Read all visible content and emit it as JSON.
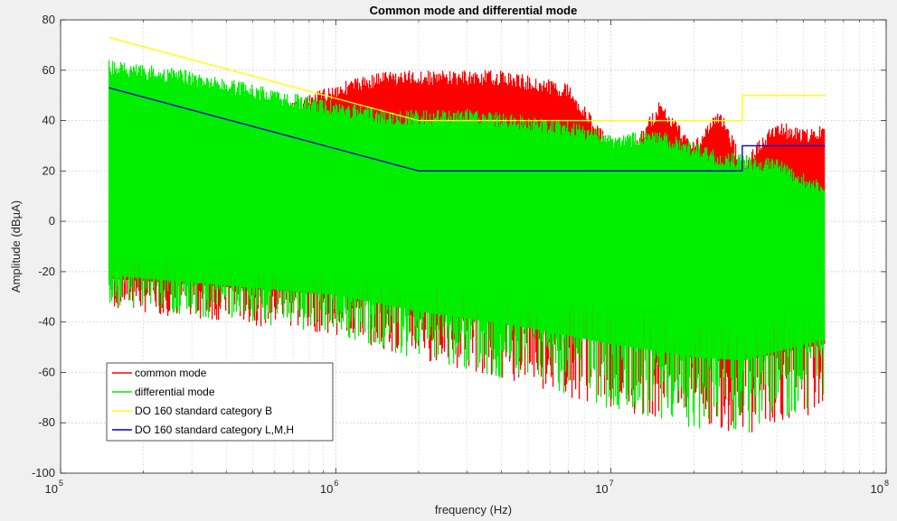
{
  "chart_data": {
    "type": "line",
    "title": "Common mode and differential mode",
    "xlabel": "frequency (Hz)",
    "ylabel": "Amplitude (dBµA)",
    "xscale": "log",
    "xlim": [
      100000,
      100000000
    ],
    "ylim": [
      -100,
      80
    ],
    "grid": "on (major and minor on x, major on y)",
    "legend_position": "lower-left",
    "x_ticks": [
      {
        "value": 100000,
        "base": "10",
        "exp": "5"
      },
      {
        "value": 1000000,
        "base": "10",
        "exp": "6"
      },
      {
        "value": 10000000,
        "base": "10",
        "exp": "7"
      },
      {
        "value": 100000000,
        "base": "10",
        "exp": "8"
      }
    ],
    "y_ticks": [
      -100,
      -80,
      -60,
      -40,
      -20,
      0,
      20,
      40,
      60,
      80
    ],
    "series": [
      {
        "name": "common mode",
        "color": "#ff0000",
        "kind": "dense spectrum",
        "x_range": [
          150000,
          60000000
        ],
        "upper_envelope": [
          [
            150000,
            13
          ],
          [
            1000000,
            55
          ],
          [
            1500000,
            60
          ],
          [
            4000000,
            60
          ],
          [
            7000000,
            55
          ],
          [
            9500000,
            35
          ],
          [
            10500000,
            20
          ],
          [
            15000000,
            48
          ],
          [
            20000000,
            32
          ],
          [
            25000000,
            45
          ],
          [
            30000000,
            25
          ],
          [
            40000000,
            40
          ],
          [
            50000000,
            37
          ],
          [
            60000000,
            38
          ]
        ],
        "lower_envelope": [
          [
            150000,
            -35
          ],
          [
            1000000,
            -45
          ],
          [
            2000000,
            -55
          ],
          [
            5000000,
            -65
          ],
          [
            10000000,
            -75
          ],
          [
            20000000,
            -80
          ],
          [
            30000000,
            -85
          ],
          [
            60000000,
            -75
          ]
        ]
      },
      {
        "name": "differential mode",
        "color": "#00ee00",
        "kind": "dense spectrum",
        "x_range": [
          150000,
          60000000
        ],
        "upper_envelope": [
          [
            150000,
            64
          ],
          [
            300000,
            60
          ],
          [
            700000,
            51
          ],
          [
            1000000,
            48
          ],
          [
            1600000,
            44
          ],
          [
            3000000,
            45
          ],
          [
            7000000,
            40
          ],
          [
            10000000,
            35
          ],
          [
            15000000,
            36
          ],
          [
            25000000,
            28
          ],
          [
            40000000,
            25
          ],
          [
            60000000,
            15
          ]
        ],
        "lower_envelope": [
          [
            150000,
            -33
          ],
          [
            1000000,
            -45
          ],
          [
            2000000,
            -55
          ],
          [
            5000000,
            -65
          ],
          [
            10000000,
            -75
          ],
          [
            20000000,
            -83
          ],
          [
            30000000,
            -85
          ],
          [
            60000000,
            -72
          ]
        ]
      },
      {
        "name": "DO 160 standard category B",
        "color": "#ffff00",
        "kind": "limit line",
        "points": [
          [
            150000,
            73
          ],
          [
            2000000,
            40
          ],
          [
            30000000,
            40
          ],
          [
            30000000,
            50
          ],
          [
            60000000,
            50
          ]
        ]
      },
      {
        "name": "DO 160 standard category L,M,H",
        "color": "#0000cc",
        "kind": "limit line",
        "points": [
          [
            150000,
            53
          ],
          [
            2000000,
            20
          ],
          [
            30000000,
            20
          ],
          [
            30000000,
            30
          ],
          [
            60000000,
            30
          ]
        ]
      }
    ]
  }
}
